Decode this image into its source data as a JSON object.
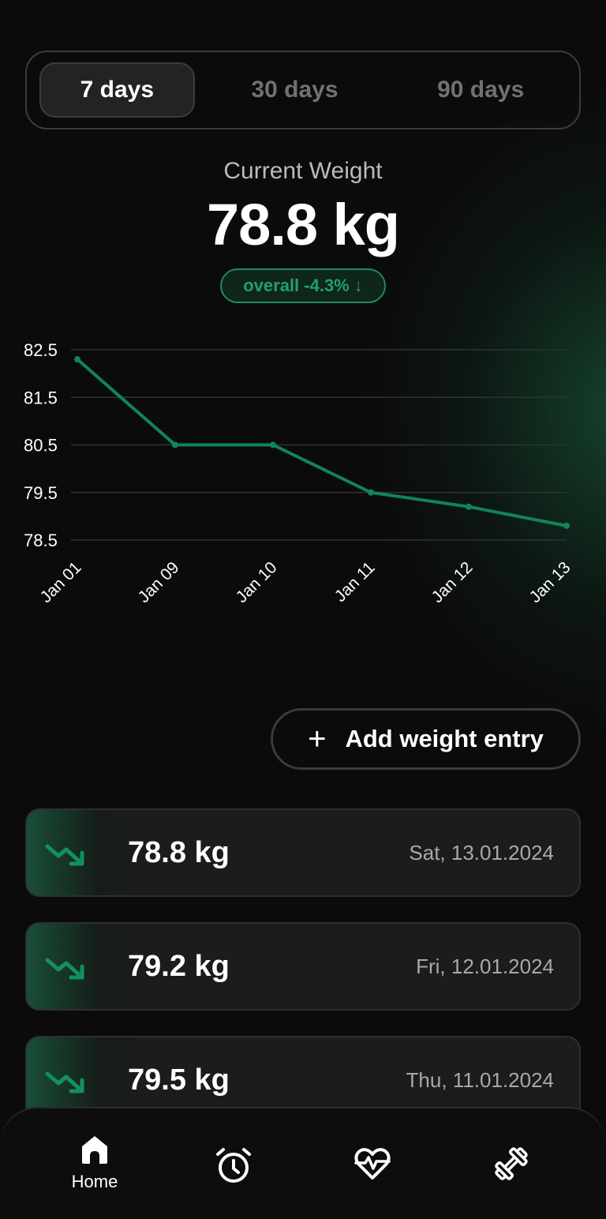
{
  "tabs": [
    {
      "label": "7 days",
      "active": true
    },
    {
      "label": "30 days",
      "active": false
    },
    {
      "label": "90 days",
      "active": false
    }
  ],
  "summary": {
    "label": "Current Weight",
    "value": "78.8 kg",
    "trend": "overall -4.3%",
    "trend_arrow": "↓"
  },
  "chart_data": {
    "type": "line",
    "categories": [
      "Jan 01",
      "Jan 09",
      "Jan 10",
      "Jan 11",
      "Jan 12",
      "Jan 13"
    ],
    "values": [
      82.3,
      80.5,
      80.5,
      79.5,
      79.2,
      78.8
    ],
    "yticks": [
      "82.5",
      "81.5",
      "80.5",
      "79.5",
      "78.5"
    ],
    "ylim": [
      78.5,
      82.5
    ],
    "grid": true,
    "line_color": "#10855a",
    "title": "",
    "xlabel": "",
    "ylabel": ""
  },
  "add_button": {
    "label": "Add weight entry",
    "icon": "plus-icon"
  },
  "entries": [
    {
      "value": "78.8 kg",
      "date": "Sat, 13.01.2024",
      "icon": "trend-down-icon"
    },
    {
      "value": "79.2 kg",
      "date": "Fri, 12.01.2024",
      "icon": "trend-down-icon"
    },
    {
      "value": "79.5 kg",
      "date": "Thu, 11.01.2024",
      "icon": "trend-down-icon"
    }
  ],
  "nav": [
    {
      "label": "Home",
      "icon": "home-icon",
      "active": true
    },
    {
      "label": "",
      "icon": "alarm-clock-icon",
      "active": false
    },
    {
      "label": "",
      "icon": "heart-pulse-icon",
      "active": false
    },
    {
      "label": "",
      "icon": "dumbbell-icon",
      "active": false
    }
  ],
  "colors": {
    "accent": "#1f8a5b",
    "background": "#0b0b0b",
    "card": "#1c1c1c"
  }
}
